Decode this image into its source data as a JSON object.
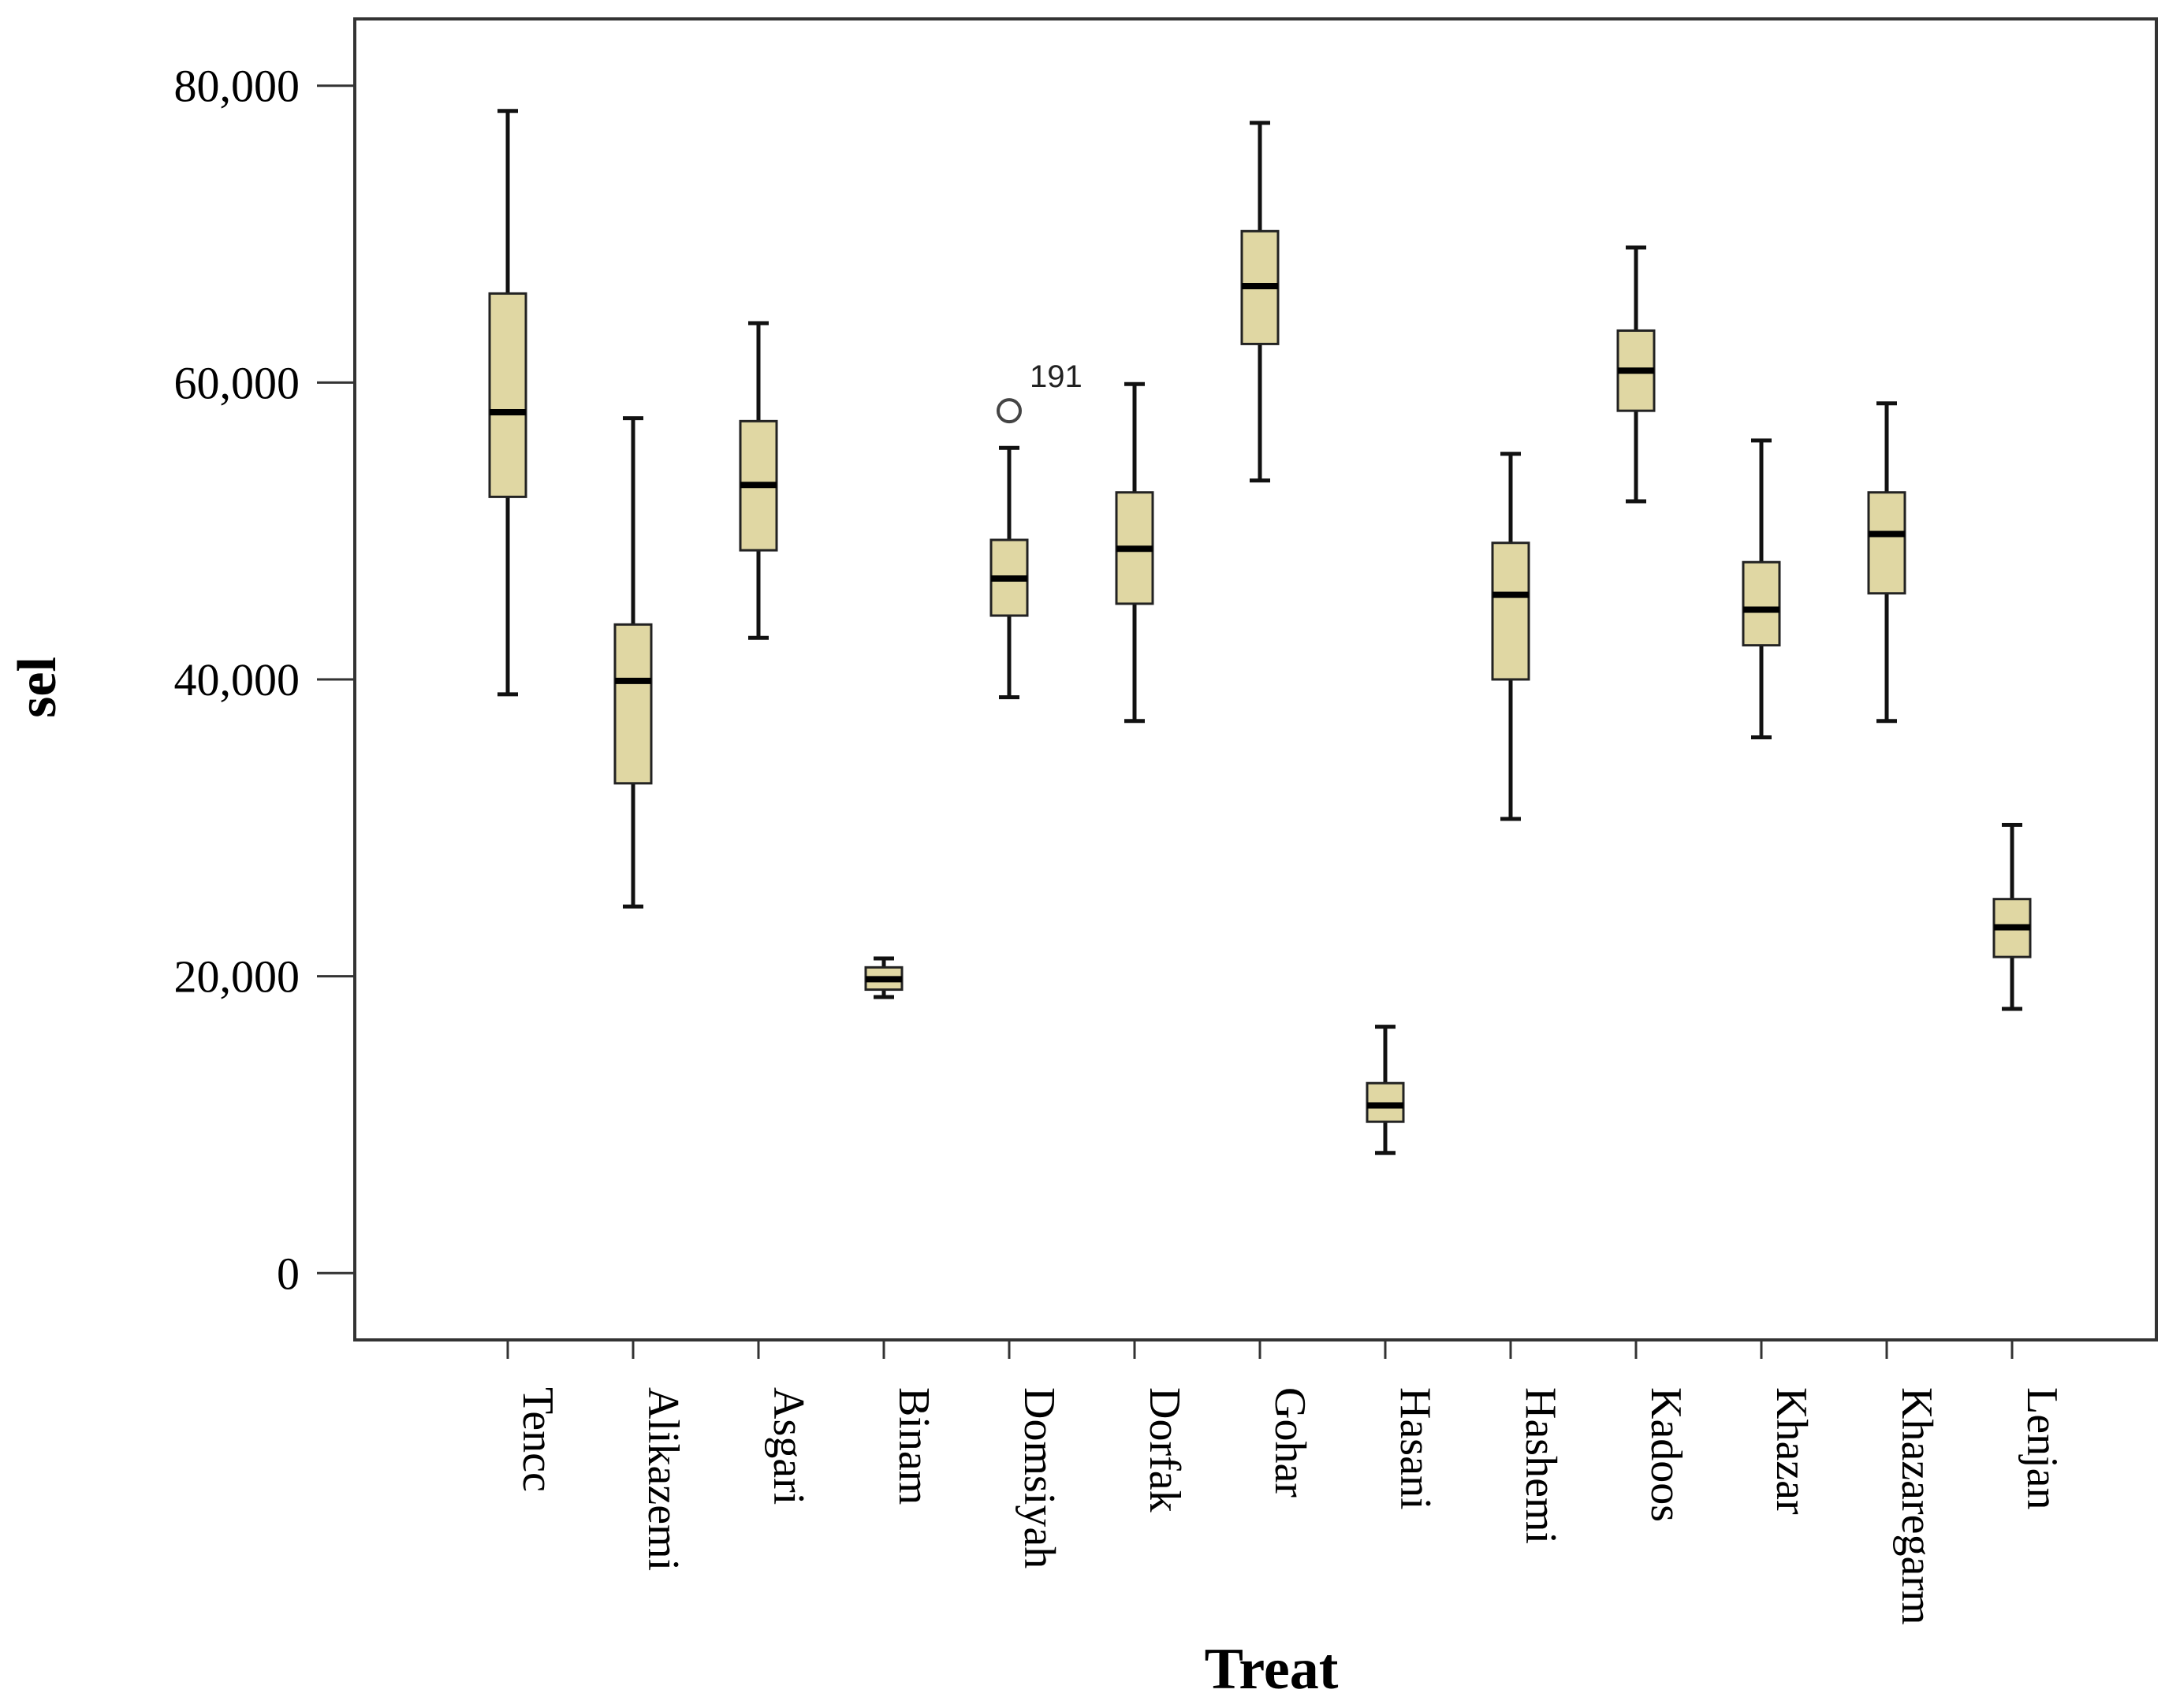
{
  "chart_data": {
    "type": "boxplot",
    "title": "",
    "xlabel": "Treat",
    "ylabel": "sel",
    "ylim": [
      -4500,
      84500
    ],
    "yticks": [
      0,
      20000,
      40000,
      60000,
      80000
    ],
    "ytick_labels": [
      "0",
      "20,000",
      "40,000",
      "60,000",
      "80,000"
    ],
    "grid": false,
    "box_color": "#e0d7a3",
    "categories": [
      "Tencc",
      "Alikazemi",
      "Asgari",
      "Binam",
      "Domsiyah",
      "Dorfak",
      "Gohar",
      "Hasani",
      "Hashemi",
      "Kadoos",
      "Khazar",
      "Khazaregarm",
      "Lenjan"
    ],
    "boxes": [
      {
        "category": "Tencc",
        "whisker_low": 39000,
        "q1": 52300,
        "median": 58000,
        "q3": 66000,
        "whisker_high": 78300
      },
      {
        "category": "Alikazemi",
        "whisker_low": 24700,
        "q1": 33000,
        "median": 39900,
        "q3": 43700,
        "whisker_high": 57600
      },
      {
        "category": "Asgari",
        "whisker_low": 42800,
        "q1": 48700,
        "median": 53100,
        "q3": 57400,
        "whisker_high": 64000
      },
      {
        "category": "Binam",
        "whisker_low": 18600,
        "q1": 19100,
        "median": 19800,
        "q3": 20600,
        "whisker_high": 21200
      },
      {
        "category": "Domsiyah",
        "whisker_low": 38800,
        "q1": 44300,
        "median": 46800,
        "q3": 49400,
        "whisker_high": 55600
      },
      {
        "category": "Dorfak",
        "whisker_low": 37200,
        "q1": 45100,
        "median": 48800,
        "q3": 52600,
        "whisker_high": 59900
      },
      {
        "category": "Gohar",
        "whisker_low": 53400,
        "q1": 62600,
        "median": 66500,
        "q3": 70200,
        "whisker_high": 77500
      },
      {
        "category": "Hasani",
        "whisker_low": 8100,
        "q1": 10200,
        "median": 11300,
        "q3": 12800,
        "whisker_high": 16600
      },
      {
        "category": "Hashemi",
        "whisker_low": 30600,
        "q1": 40000,
        "median": 45700,
        "q3": 49200,
        "whisker_high": 55200
      },
      {
        "category": "Kadoos",
        "whisker_low": 52000,
        "q1": 58100,
        "median": 60800,
        "q3": 63500,
        "whisker_high": 69100
      },
      {
        "category": "Khazar",
        "whisker_low": 36100,
        "q1": 42300,
        "median": 44700,
        "q3": 47900,
        "whisker_high": 56100
      },
      {
        "category": "Khazaregarm",
        "whisker_low": 37200,
        "q1": 45800,
        "median": 49800,
        "q3": 52600,
        "whisker_high": 58600
      },
      {
        "category": "Lenjan",
        "whisker_low": 17800,
        "q1": 21300,
        "median": 23300,
        "q3": 25200,
        "whisker_high": 30200
      }
    ],
    "outliers": [
      {
        "category": "Domsiyah",
        "value": 58100,
        "label": "191"
      }
    ]
  }
}
